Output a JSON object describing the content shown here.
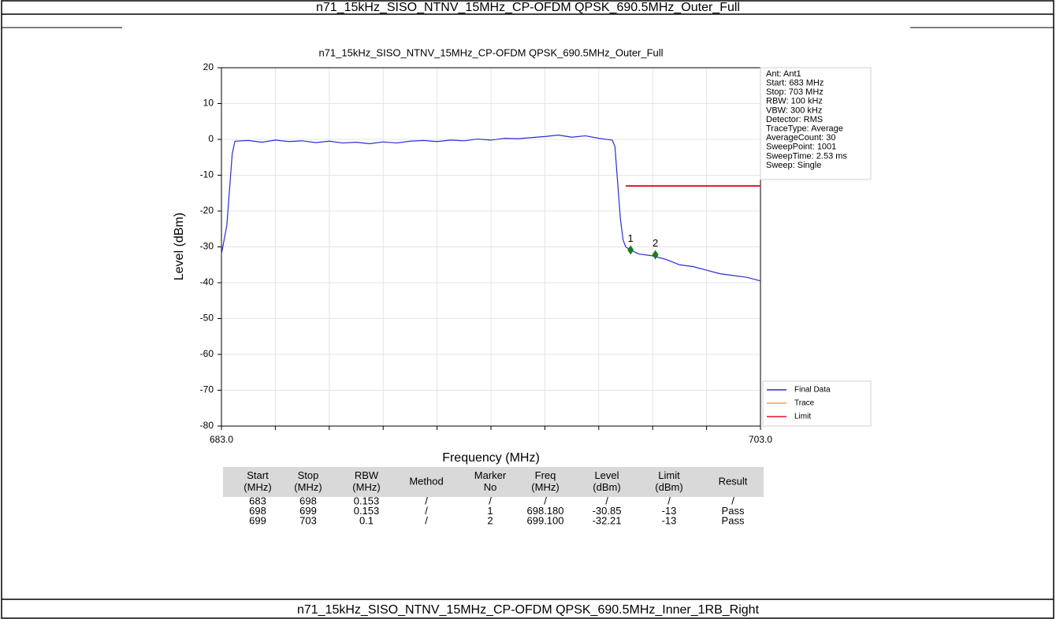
{
  "header": {
    "title": "n71_15kHz_SISO_NTNV_15MHz_CP-OFDM QPSK_690.5MHz_Outer_Full"
  },
  "chart_data": {
    "type": "line",
    "title": "n71_15kHz_SISO_NTNV_15MHz_CP-OFDM QPSK_690.5MHz_Outer_Full",
    "xlabel": "Frequency (MHz)",
    "ylabel": "Level (dBm)",
    "xlim": [
      683,
      703
    ],
    "ylim": [
      -80,
      20
    ],
    "xticks": [
      {
        "value": 683,
        "label": "683.0"
      },
      {
        "value": 703,
        "label": "703.0"
      }
    ],
    "xminor": [
      685,
      687,
      689,
      691,
      693,
      695,
      697,
      699,
      701
    ],
    "yticks": [
      20,
      10,
      0,
      -10,
      -20,
      -30,
      -40,
      -50,
      -60,
      -70,
      -80
    ],
    "grid": true,
    "series": [
      {
        "name": "Final Data",
        "color": "#2b2bd6",
        "x": [
          683,
          683.1,
          683.2,
          683.3,
          683.4,
          683.5,
          684,
          684.5,
          685,
          685.5,
          686,
          686.5,
          687,
          687.5,
          688,
          688.5,
          689,
          689.5,
          690,
          690.5,
          691,
          691.5,
          692,
          692.5,
          693,
          693.5,
          694,
          694.5,
          695,
          695.5,
          696,
          696.5,
          697,
          697.5,
          697.6,
          697.7,
          697.8,
          697.9,
          698,
          698.2,
          698.5,
          699,
          699.5,
          700,
          700.5,
          701,
          701.5,
          702,
          702.5,
          703
        ],
        "values": [
          -32,
          -28,
          -24,
          -14,
          -4,
          -0.5,
          -0.3,
          -0.8,
          -0.2,
          -0.6,
          -0.4,
          -0.9,
          -0.5,
          -1.0,
          -0.8,
          -1.2,
          -0.7,
          -1.0,
          -0.5,
          -0.3,
          -0.6,
          -0.2,
          -0.4,
          0.1,
          -0.2,
          0.3,
          0.2,
          0.5,
          0.8,
          1.2,
          0.6,
          1.0,
          0.3,
          -0.2,
          -2,
          -12,
          -22,
          -28,
          -30,
          -31,
          -32,
          -32.5,
          -33.5,
          -35,
          -35.5,
          -36.5,
          -37.5,
          -38,
          -38.5,
          -39.5
        ]
      },
      {
        "name": "Trace",
        "color": "#ff9f2e"
      },
      {
        "name": "Limit",
        "color": "#e8112d",
        "x": [
          698,
          703
        ],
        "values": [
          -13,
          -13
        ]
      }
    ],
    "markers": [
      {
        "label": "1",
        "x": 698.18,
        "value": -30.85,
        "color": "#1e7a1e"
      },
      {
        "label": "2",
        "x": 699.1,
        "value": -32.21,
        "color": "#1e7a1e"
      }
    ],
    "info": [
      "Ant: Ant1",
      "Start: 683 MHz",
      "Stop: 703 MHz",
      "RBW: 100 kHz",
      "VBW: 300 kHz",
      "Detector: RMS",
      "TraceType: Average",
      "AverageCount: 30",
      "SweepPoint: 1001",
      "SweepTime: 2.53 ms",
      "Sweep: Single"
    ]
  },
  "table": {
    "headers": [
      [
        "Start",
        "(MHz)"
      ],
      [
        "Stop",
        "(MHz)"
      ],
      [
        "RBW",
        "(MHz)"
      ],
      [
        "Method"
      ],
      [
        "Marker",
        "No"
      ],
      [
        "Freq",
        "(MHz)"
      ],
      [
        "Level",
        "(dBm)"
      ],
      [
        "Limit",
        "(dBm)"
      ],
      [
        "Result"
      ]
    ],
    "rows": [
      [
        "683",
        "698",
        "0.153",
        "/",
        "/",
        "/",
        "/",
        "/",
        "/"
      ],
      [
        "698",
        "699",
        "0.153",
        "/",
        "1",
        "698.180",
        "-30.85",
        "-13",
        "Pass"
      ],
      [
        "699",
        "703",
        "0.1",
        "/",
        "2",
        "699.100",
        "-32.21",
        "-13",
        "Pass"
      ]
    ]
  },
  "footer": {
    "title": "n71_15kHz_SISO_NTNV_15MHz_CP-OFDM QPSK_690.5MHz_Inner_1RB_Right"
  }
}
